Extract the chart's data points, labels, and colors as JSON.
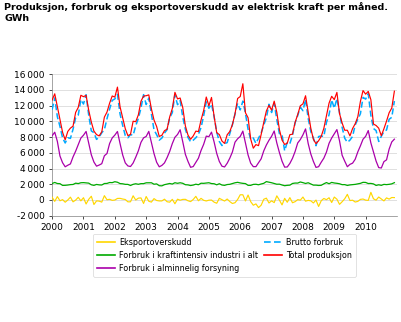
{
  "title": "Produksjon, forbruk og eksportoverskudd av elektrisk kraft per måned.\nGWh",
  "ylabel": "GWh",
  "ylim": [
    -2000,
    16000
  ],
  "yticks": [
    -2000,
    0,
    2000,
    4000,
    6000,
    8000,
    10000,
    12000,
    14000,
    16000
  ],
  "xlim_start": 2000.0,
  "xlim_end": 2011.0,
  "xticks": [
    2000,
    2001,
    2002,
    2003,
    2004,
    2005,
    2006,
    2007,
    2008,
    2009,
    2010
  ],
  "colors": {
    "eksportoverskudd": "#FFD700",
    "kraftintensiv": "#00AA00",
    "alminnelig": "#AA00AA",
    "brutto": "#00AAFF",
    "total": "#FF0000"
  },
  "legend_labels": [
    "Eksportoverskudd",
    "Forbruk i kraftintensiv industri i alt",
    "Forbruk i alminnelig forsyning",
    "Brutto forbruk",
    "Total produksjon"
  ]
}
